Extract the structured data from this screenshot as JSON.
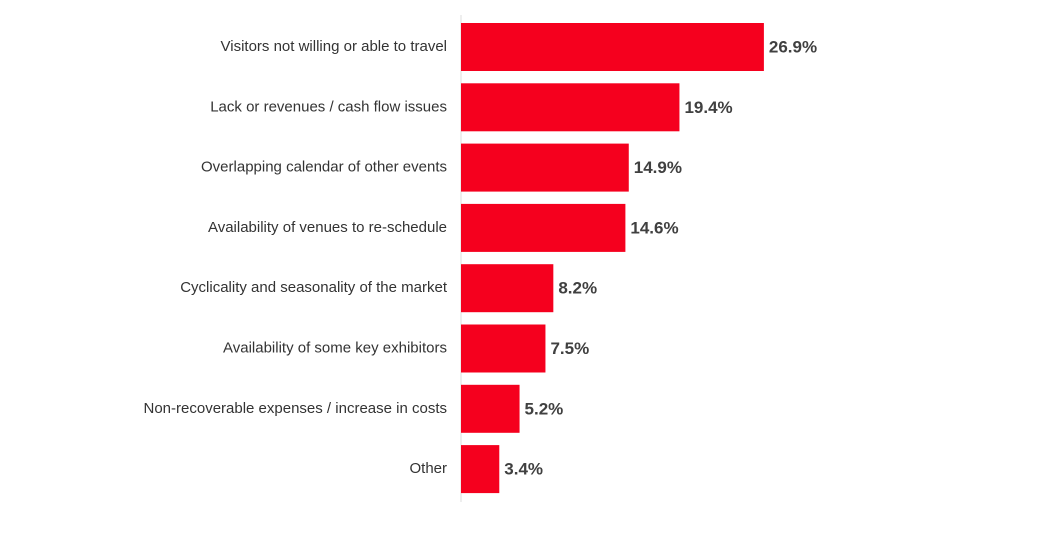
{
  "chart_data": {
    "type": "barh",
    "categories": [
      "Visitors not willing or able to travel",
      "Lack or revenues / cash flow issues",
      "Overlapping calendar of other events",
      "Availability of venues to re-schedule",
      "Cyclicality and seasonality of the market",
      "Availability of some key exhibitors",
      "Non-recoverable expenses / increase in costs",
      "Other"
    ],
    "values": [
      26.9,
      19.4,
      14.9,
      14.6,
      8.2,
      7.5,
      5.2,
      3.4
    ],
    "value_labels": [
      "26.9%",
      "19.4%",
      "14.9%",
      "14.6%",
      "8.2%",
      "7.5%",
      "5.2%",
      "3.4%"
    ],
    "color": "#f5001e"
  }
}
